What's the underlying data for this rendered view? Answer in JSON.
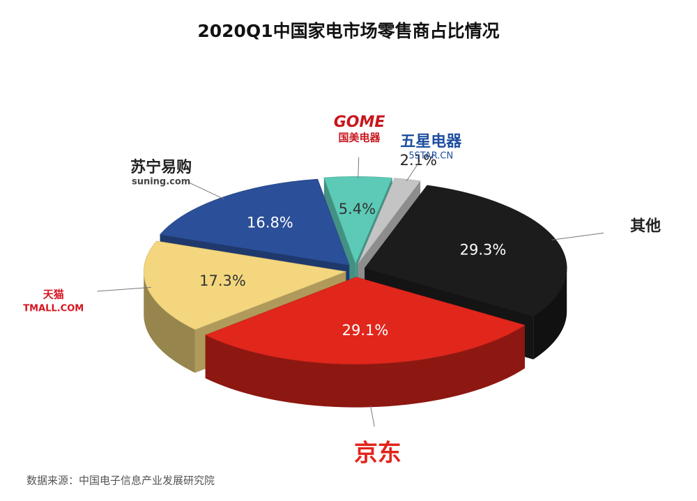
{
  "chart_data": {
    "type": "pie",
    "title": "2020Q1中国家电市场零售商占比情况",
    "categories": [
      "其他",
      "京东",
      "天猫",
      "苏宁易购",
      "国美电器",
      "五星电器"
    ],
    "secondary_labels": [
      null,
      null,
      "TMALL.COM",
      "suning.com",
      "GOME",
      "5STAR.CN"
    ],
    "values": [
      29.3,
      29.1,
      17.3,
      16.8,
      5.4,
      2.1
    ],
    "value_labels": [
      "29.3%",
      "29.1%",
      "17.3%",
      "16.8%",
      "5.4%",
      "2.1%"
    ],
    "colors": [
      "#1c1c1c",
      "#e1261c",
      "#f3d67e",
      "#2b4f98",
      "#5ccab6",
      "#c4c4c4"
    ],
    "source": "数据来源：中国电子信息产业发展研究院"
  }
}
